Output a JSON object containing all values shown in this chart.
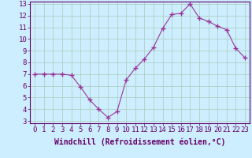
{
  "x": [
    0,
    1,
    2,
    3,
    4,
    5,
    6,
    7,
    8,
    9,
    10,
    11,
    12,
    13,
    14,
    15,
    16,
    17,
    18,
    19,
    20,
    21,
    22,
    23
  ],
  "y": [
    7.0,
    7.0,
    7.0,
    7.0,
    6.9,
    5.9,
    4.8,
    4.0,
    3.3,
    3.8,
    6.5,
    7.5,
    8.3,
    9.3,
    10.9,
    12.1,
    12.2,
    13.0,
    11.8,
    11.5,
    11.1,
    10.8,
    9.2,
    8.4
  ],
  "line_color": "#993399",
  "marker": "+",
  "marker_size": 4,
  "bg_color": "#cceeff",
  "grid_color": "#aaccbb",
  "xlim": [
    -0.5,
    23.5
  ],
  "ylim": [
    2.8,
    13.2
  ],
  "yticks": [
    3,
    4,
    5,
    6,
    7,
    8,
    9,
    10,
    11,
    12,
    13
  ],
  "xticks": [
    0,
    1,
    2,
    3,
    4,
    5,
    6,
    7,
    8,
    9,
    10,
    11,
    12,
    13,
    14,
    15,
    16,
    17,
    18,
    19,
    20,
    21,
    22,
    23
  ],
  "xlabel": "Windchill (Refroidissement éolien,°C)",
  "xlabel_fontsize": 7,
  "tick_fontsize": 6.5,
  "label_color": "#660066",
  "spine_color": "#660066"
}
